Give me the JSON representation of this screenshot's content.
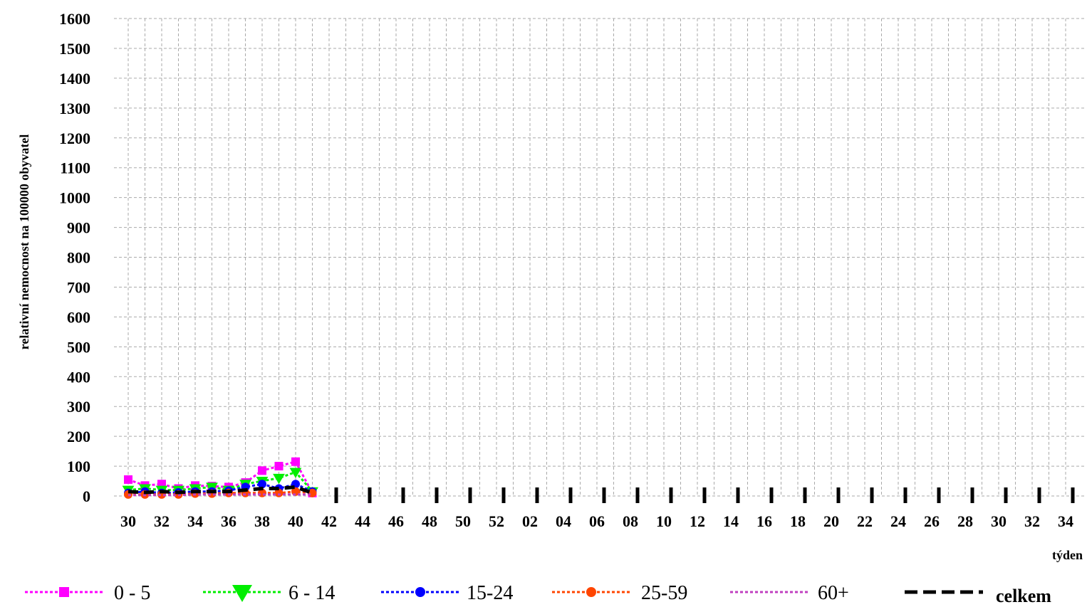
{
  "chart_data": {
    "type": "line",
    "ylabel": "relativní nemocnost na 100000 obyvatel",
    "xlabel": "týden",
    "ylim": [
      0,
      1600
    ],
    "yticks": [
      0,
      100,
      200,
      300,
      400,
      500,
      600,
      700,
      800,
      900,
      1000,
      1100,
      1200,
      1300,
      1400,
      1500,
      1600
    ],
    "x_weeks": [
      "30",
      "31",
      "32",
      "33",
      "34",
      "35",
      "36",
      "37",
      "38",
      "39",
      "40",
      "41",
      "42",
      "43",
      "44",
      "45",
      "46",
      "47",
      "48",
      "49",
      "50",
      "51",
      "52",
      "01",
      "02",
      "03",
      "04",
      "05",
      "06",
      "07",
      "08",
      "09",
      "10",
      "11",
      "12",
      "13",
      "14",
      "15",
      "16",
      "17",
      "18",
      "19",
      "20",
      "21",
      "22",
      "23",
      "24",
      "25",
      "26",
      "27",
      "28",
      "29",
      "30",
      "31",
      "32",
      "33",
      "34"
    ],
    "x_tick_labels": [
      "30",
      "32",
      "34",
      "36",
      "38",
      "40",
      "42",
      "44",
      "46",
      "48",
      "50",
      "52",
      "02",
      "04",
      "06",
      "08",
      "10",
      "12",
      "14",
      "16",
      "18",
      "20",
      "22",
      "24",
      "26",
      "28",
      "30",
      "32",
      "34"
    ],
    "grid": true,
    "legend_position": "bottom",
    "series": [
      {
        "name": "0 - 5",
        "color": "#ff00ff",
        "marker": "square",
        "dash": "dotted",
        "values": [
          55,
          35,
          40,
          25,
          35,
          33,
          30,
          45,
          85,
          100,
          115,
          10
        ]
      },
      {
        "name": "6 - 14",
        "color": "#00ee00",
        "marker": "triangle-down",
        "dash": "dotted",
        "values": [
          20,
          25,
          20,
          20,
          25,
          30,
          20,
          40,
          50,
          60,
          80,
          15
        ]
      },
      {
        "name": "15-24",
        "color": "#0000ff",
        "marker": "circle",
        "dash": "dotted",
        "values": [
          10,
          15,
          10,
          12,
          15,
          15,
          18,
          30,
          40,
          25,
          40,
          15
        ]
      },
      {
        "name": "25-59",
        "color": "#ff4500",
        "marker": "circle",
        "dash": "dotted",
        "values": [
          5,
          5,
          5,
          5,
          8,
          8,
          10,
          10,
          10,
          10,
          15,
          10
        ]
      },
      {
        "name": "60+",
        "color": "#c040c0",
        "marker": "none",
        "dash": "dotted",
        "values": [
          3,
          3,
          3,
          3,
          5,
          5,
          5,
          5,
          5,
          5,
          5,
          5
        ]
      },
      {
        "name": "celkem",
        "color": "#000000",
        "marker": "dash",
        "dash": "dashed",
        "values": [
          15,
          12,
          15,
          12,
          15,
          15,
          15,
          20,
          25,
          25,
          30,
          10
        ]
      }
    ]
  }
}
